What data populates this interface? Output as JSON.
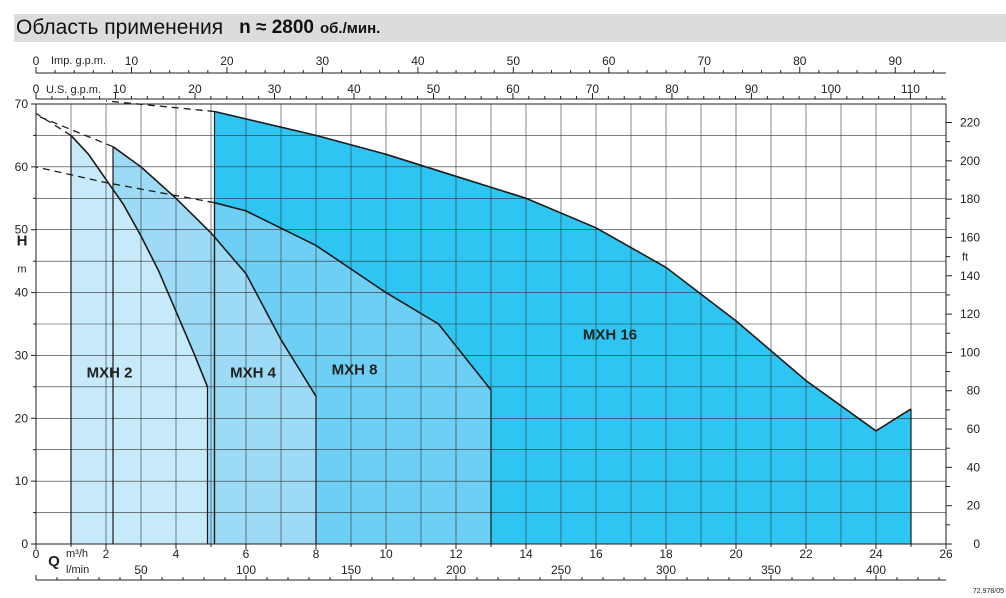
{
  "header": {
    "title": "Область применения",
    "speed_label": "n ≈ 2800",
    "speed_unit": "об./мин."
  },
  "chart_data": {
    "type": "area",
    "title": "Область применения n ≈ 2800 об./мин.",
    "x_axis": {
      "label": "Q",
      "unit": "m³/h",
      "range": [
        0,
        26
      ],
      "ticks": [
        "0",
        "2",
        "4",
        "6",
        "8",
        "10",
        "12",
        "14",
        "16",
        "18",
        "20",
        "22",
        "24",
        "26"
      ]
    },
    "x_axis_lmin": {
      "unit": "l/min",
      "ticks": [
        "50",
        "100",
        "150",
        "200",
        "250",
        "300",
        "350",
        "400"
      ]
    },
    "x_axis_imp": {
      "unit": "Imp. g.p.m.",
      "ticks": [
        "0",
        "10",
        "20",
        "30",
        "40",
        "50",
        "60",
        "70",
        "80",
        "90"
      ]
    },
    "x_axis_us": {
      "unit": "U.S. g.p.m.",
      "ticks": [
        "0",
        "10",
        "20",
        "30",
        "40",
        "50",
        "60",
        "70",
        "80",
        "90",
        "100",
        "110"
      ]
    },
    "y_axis": {
      "label": "H",
      "unit": "m",
      "range": [
        0,
        70
      ],
      "ticks": [
        "0",
        "10",
        "20",
        "30",
        "40",
        "50",
        "60",
        "70"
      ]
    },
    "y_axis_right": {
      "unit": "ft",
      "ticks": [
        "0",
        "20",
        "40",
        "60",
        "80",
        "100",
        "120",
        "140",
        "160",
        "180",
        "200",
        "220"
      ]
    },
    "grid": true,
    "series": [
      {
        "name": "MXH 16",
        "color": "#2ec5f3",
        "x": [
          5.1,
          8,
          10,
          12,
          14,
          16,
          18,
          20,
          22,
          24,
          25
        ],
        "y": [
          68.8,
          65,
          62,
          58.5,
          55,
          50.3,
          44,
          35.5,
          26,
          18,
          21.5
        ],
        "dashed_x": [
          5.1,
          2
        ],
        "dashed_y": [
          68.8,
          70.5
        ]
      },
      {
        "name": "MXH 8",
        "color": "#6dcff4",
        "x": [
          5.1,
          6,
          8,
          10,
          11.5,
          13
        ],
        "y": [
          54.3,
          53,
          47.5,
          40,
          35,
          24.5
        ],
        "dashed_x": [
          5.1,
          2,
          0
        ],
        "dashed_y": [
          54.3,
          57.5,
          60
        ]
      },
      {
        "name": "MXH 4",
        "color": "#9ddaf6",
        "x": [
          2.2,
          3,
          4,
          5,
          6,
          7,
          8
        ],
        "y": [
          63.2,
          60,
          55,
          49.5,
          43,
          32.5,
          23.5
        ],
        "dashed_x": [
          2.2,
          0
        ],
        "dashed_y": [
          63.2,
          68.2
        ]
      },
      {
        "name": "MXH 2",
        "color": "#c7eafa",
        "x": [
          1,
          1.5,
          2,
          2.5,
          3,
          3.5,
          4,
          4.5,
          4.9
        ],
        "y": [
          65,
          62,
          58,
          54,
          49,
          43.5,
          37,
          30.5,
          25
        ],
        "dashed_x": [
          1,
          0
        ],
        "dashed_y": [
          65,
          68.5
        ]
      }
    ],
    "annotations": [
      "MXH 2",
      "MXH 4",
      "MXH 8",
      "MXH 16"
    ],
    "footnote": "72.978/05"
  }
}
